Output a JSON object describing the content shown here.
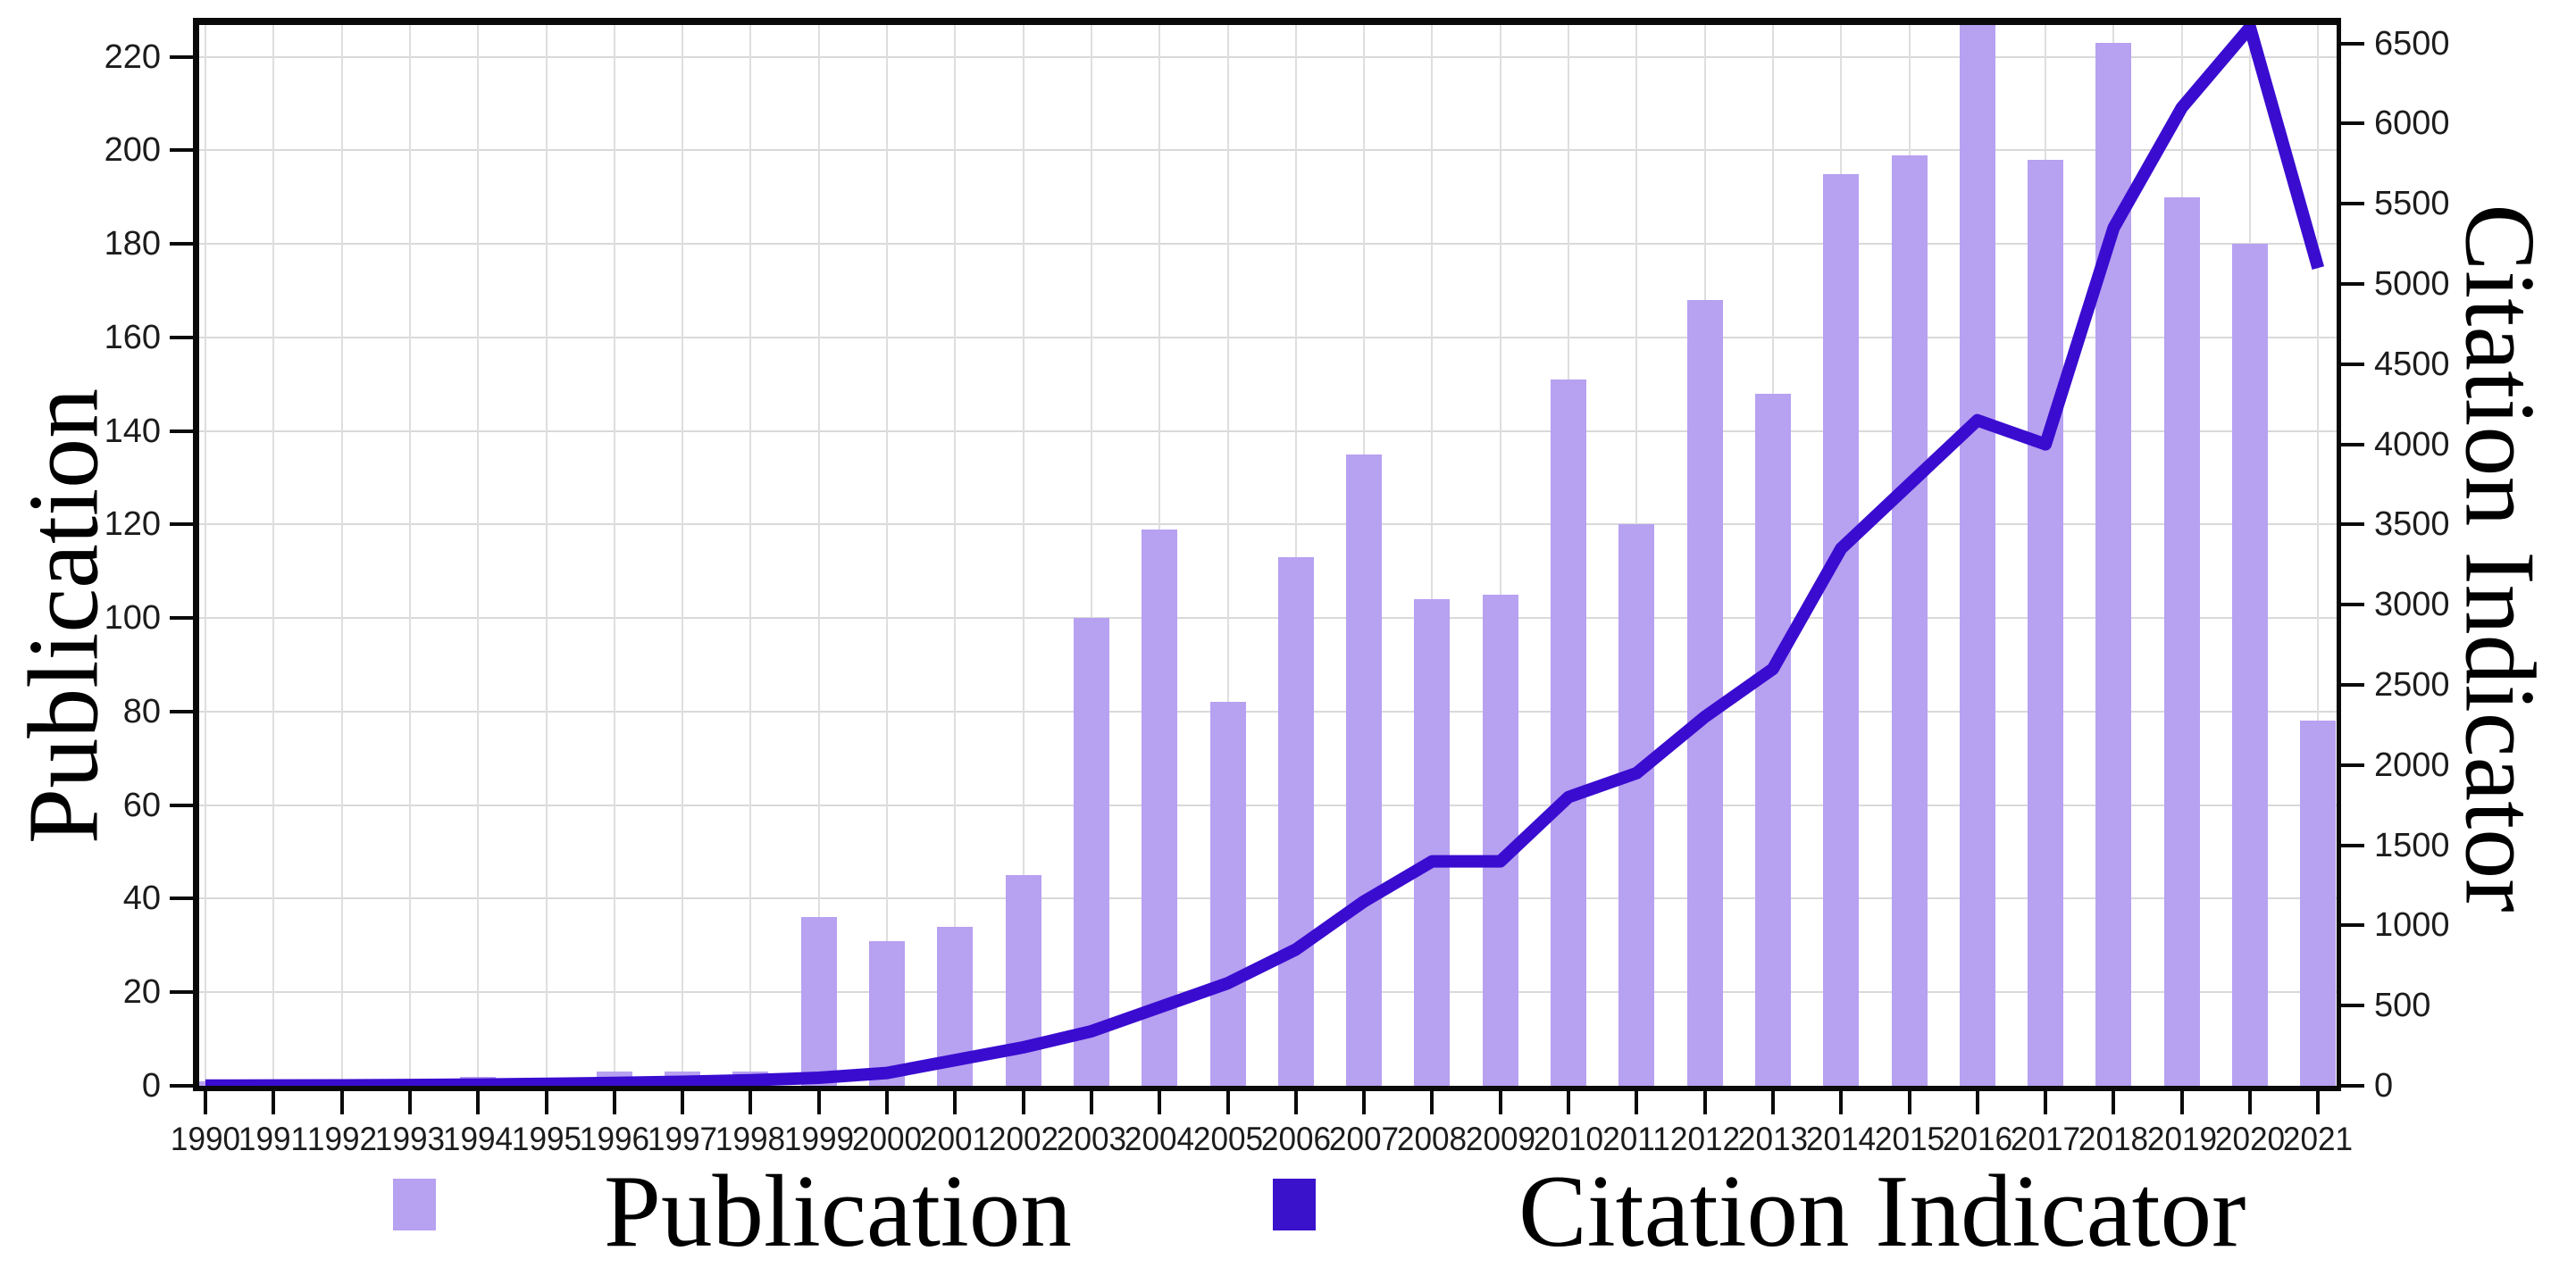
{
  "chart_data": {
    "type": "bar",
    "title": "",
    "categories": [
      "1990",
      "1991",
      "1992",
      "1993",
      "1994",
      "1995",
      "1996",
      "1997",
      "1998",
      "1999",
      "2000",
      "2001",
      "2002",
      "2003",
      "2004",
      "2005",
      "2006",
      "2007",
      "2008",
      "2009",
      "2010",
      "2011",
      "2012",
      "2013",
      "2014",
      "2015",
      "2016",
      "2017",
      "2018",
      "2019",
      "2020",
      "2021"
    ],
    "series": [
      {
        "name": "Publication",
        "type": "bar",
        "axis": "left",
        "values": [
          1,
          0,
          0,
          0,
          2,
          0,
          3,
          3,
          3,
          36,
          31,
          34,
          45,
          100,
          119,
          82,
          113,
          135,
          104,
          105,
          151,
          120,
          168,
          148,
          195,
          199,
          227,
          198,
          223,
          190,
          180,
          78
        ]
      },
      {
        "name": "Citation Indicator",
        "type": "line",
        "axis": "right",
        "values": [
          1,
          2,
          3,
          5,
          8,
          12,
          18,
          25,
          35,
          50,
          80,
          160,
          240,
          340,
          490,
          640,
          850,
          1150,
          1400,
          1400,
          1800,
          1950,
          2300,
          2600,
          3350,
          3750,
          4150,
          4000,
          5350,
          6100,
          6600,
          5100
        ]
      }
    ],
    "left_axis": {
      "label": "Publication",
      "min": 0,
      "max": 226.8,
      "tick_step": 20,
      "ticks": [
        0,
        20,
        40,
        60,
        80,
        100,
        120,
        140,
        160,
        180,
        200,
        220
      ]
    },
    "right_axis": {
      "label": "Citation Indicator",
      "min": 0,
      "max": 6615,
      "tick_step": 500,
      "ticks": [
        0,
        500,
        1000,
        1500,
        2000,
        2500,
        3000,
        3500,
        4000,
        4500,
        5000,
        5500,
        6000,
        6500
      ]
    },
    "grid": true,
    "legend_position": "bottom",
    "colors": {
      "bar": "#b7a1f1",
      "line": "#3a0cd0",
      "grid": "#d9d9d9",
      "axis": "#0a0a0a"
    }
  },
  "legend": {
    "items": [
      {
        "label": "Publication",
        "color": "#b7a1f1"
      },
      {
        "label": "Citation Indicator",
        "color": "#3a12cc"
      }
    ]
  }
}
